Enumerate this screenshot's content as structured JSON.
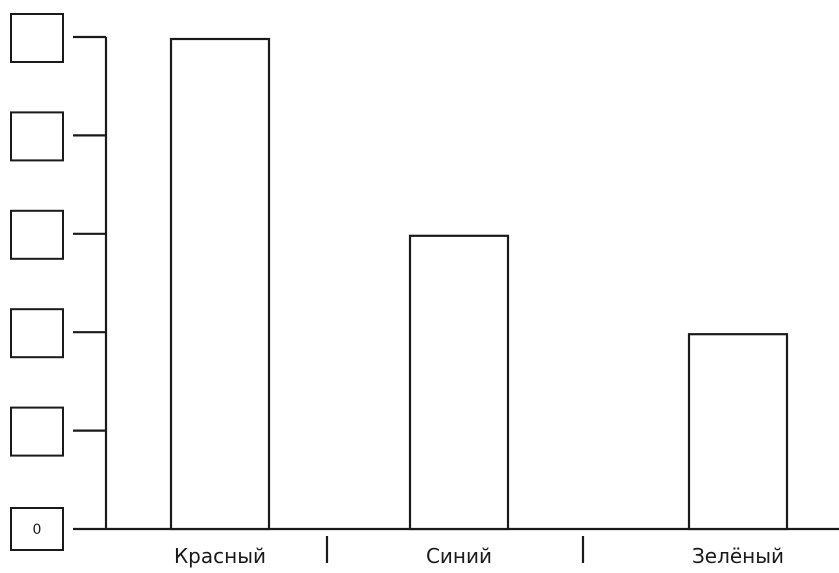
{
  "chart_data": {
    "type": "bar",
    "categories": [
      "Красный",
      "Синий",
      "Зелёный"
    ],
    "values": [
      5,
      3,
      2
    ],
    "ylim": [
      0,
      5
    ],
    "y_ticks": [
      0,
      1,
      2,
      3,
      4,
      5
    ],
    "y_tick_labels": [
      "0",
      "",
      "",
      "",
      "",
      ""
    ],
    "title": "",
    "xlabel": "",
    "ylabel": "",
    "grid": false,
    "legend": "none"
  }
}
